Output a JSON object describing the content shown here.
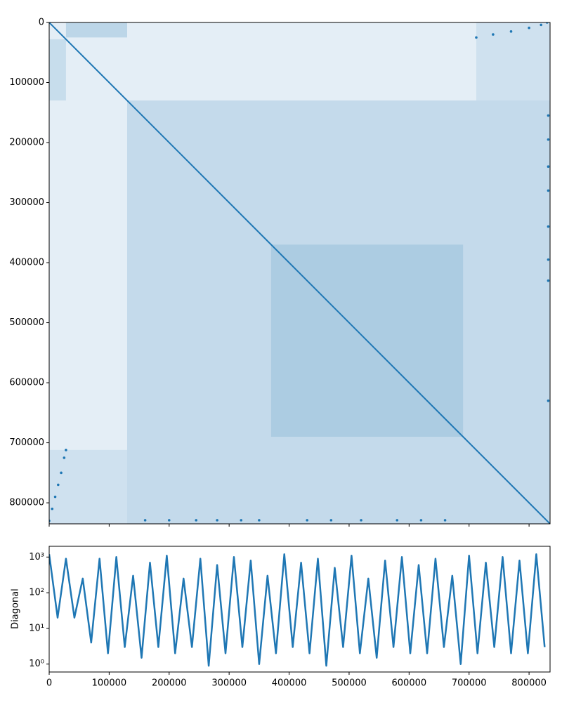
{
  "chart_data": [
    {
      "type": "scatter",
      "xlim": [
        0,
        835000
      ],
      "ylim": [
        835000,
        0
      ],
      "xticks": [
        0,
        100000,
        200000,
        300000,
        400000,
        500000,
        600000,
        700000,
        800000
      ],
      "yticks": [
        0,
        100000,
        200000,
        300000,
        400000,
        500000,
        600000,
        700000,
        800000
      ],
      "color": "#1f77b4",
      "blocks": [
        {
          "x": [
            0,
            835000
          ],
          "y": [
            0,
            835000
          ],
          "density": 0.12
        },
        {
          "x": [
            130000,
            835000
          ],
          "y": [
            130000,
            835000
          ],
          "density": 0.16
        },
        {
          "x": [
            370000,
            690000
          ],
          "y": [
            370000,
            690000
          ],
          "density": 0.14
        },
        {
          "x": [
            28000,
            130000
          ],
          "y": [
            0,
            25000
          ],
          "density": 0.2
        },
        {
          "x": [
            0,
            28000
          ],
          "y": [
            28000,
            130000
          ],
          "density": 0.14
        },
        {
          "x": [
            712000,
            835000
          ],
          "y": [
            0,
            130000
          ],
          "density": 0.1
        },
        {
          "x": [
            0,
            130000
          ],
          "y": [
            712000,
            835000
          ],
          "density": 0.1
        }
      ],
      "series": [
        {
          "mode": "line",
          "x": [
            0,
            835000
          ],
          "values": [
            0,
            835000
          ]
        },
        {
          "mode": "markers",
          "x": [
            0,
            5000,
            10000,
            15000,
            20000,
            25000,
            28000
          ],
          "values": [
            830000,
            810000,
            790000,
            770000,
            750000,
            725000,
            712000
          ]
        },
        {
          "mode": "markers",
          "x": [
            712000,
            740000,
            770000,
            800000,
            820000,
            830000
          ],
          "values": [
            25000,
            20000,
            15000,
            9000,
            4000,
            0
          ]
        },
        {
          "mode": "markers",
          "x": [
            832000,
            832000,
            832000,
            832000,
            832000,
            832000,
            832000,
            832000
          ],
          "values": [
            155000,
            195000,
            240000,
            280000,
            340000,
            395000,
            430000,
            630000
          ]
        },
        {
          "mode": "markers",
          "x": [
            160000,
            200000,
            245000,
            280000,
            320000,
            350000,
            430000,
            470000,
            520000,
            580000,
            620000,
            660000
          ],
          "values": [
            829000,
            829000,
            829000,
            829000,
            829000,
            829000,
            829000,
            829000,
            829000,
            829000,
            829000,
            829000
          ]
        }
      ]
    },
    {
      "type": "line",
      "ylabel": "Diagonal",
      "log_y": true,
      "xlim": [
        0,
        835000
      ],
      "ylim": [
        0.6,
        2000
      ],
      "xticks": [
        0,
        100000,
        200000,
        300000,
        400000,
        500000,
        600000,
        700000,
        800000
      ],
      "yticks": [
        {
          "value": 1,
          "label": "10⁰"
        },
        {
          "value": 10,
          "label": "10¹"
        },
        {
          "value": 100,
          "label": "10²"
        },
        {
          "value": 1000,
          "label": "10³"
        }
      ],
      "color": "#1f77b4",
      "x": [
        0,
        14000,
        28000,
        42000,
        56000,
        70000,
        84000,
        98000,
        112000,
        126000,
        140000,
        154000,
        168000,
        182000,
        196000,
        210000,
        224000,
        238000,
        252000,
        266000,
        280000,
        294000,
        308000,
        322000,
        336000,
        350000,
        364000,
        378000,
        392000,
        406000,
        420000,
        434000,
        448000,
        462000,
        476000,
        490000,
        504000,
        518000,
        532000,
        546000,
        560000,
        574000,
        588000,
        602000,
        616000,
        630000,
        644000,
        658000,
        672000,
        686000,
        700000,
        714000,
        728000,
        742000,
        756000,
        770000,
        784000,
        798000,
        812000,
        826000
      ],
      "values": [
        1200,
        20,
        900,
        20,
        250,
        4,
        900,
        2,
        1000,
        3,
        300,
        1.5,
        700,
        3,
        1100,
        2,
        250,
        3,
        900,
        0.9,
        600,
        2,
        1000,
        3,
        800,
        1,
        300,
        2,
        1200,
        3,
        700,
        2,
        900,
        0.9,
        500,
        3,
        1100,
        2,
        250,
        1.5,
        800,
        3,
        1000,
        2,
        600,
        2,
        900,
        3,
        300,
        1,
        1100,
        2,
        700,
        3,
        1000,
        2,
        800,
        2,
        1200,
        3
      ]
    }
  ]
}
